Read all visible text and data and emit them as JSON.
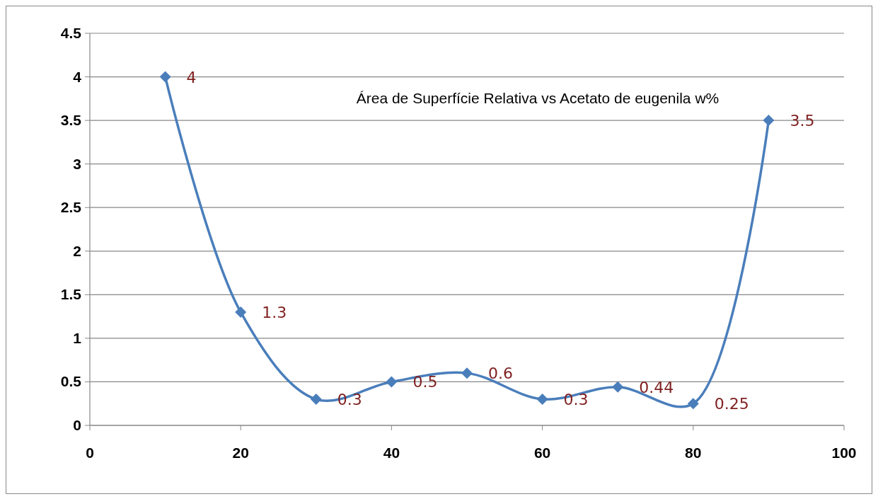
{
  "chart_data": {
    "type": "line",
    "title": "Área de Superfície Relativa vs Acetato de eugenila w%",
    "x": [
      10,
      20,
      30,
      40,
      50,
      60,
      70,
      80,
      90
    ],
    "series": [
      {
        "color": "#4a7ebb",
        "values": [
          4,
          1.3,
          0.3,
          0.5,
          0.6,
          0.3,
          0.44,
          0.25,
          3.5
        ]
      }
    ],
    "xlim": [
      0,
      100
    ],
    "xticks": [
      0,
      20,
      40,
      60,
      80,
      100
    ],
    "ylim": [
      0,
      4.5
    ],
    "yticks": [
      0,
      0.5,
      1,
      1.5,
      2,
      2.5,
      3,
      3.5,
      4,
      4.5
    ],
    "grid": "y",
    "marker": "diamond",
    "line_style": "solid",
    "data_labels": true
  }
}
